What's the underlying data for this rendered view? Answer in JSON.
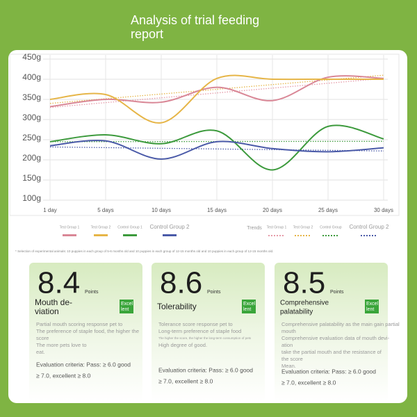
{
  "title": [
    "Analysis of trial feeding",
    "report"
  ],
  "chart_data": {
    "type": "line",
    "categories": [
      "1 day",
      "5 days",
      "10 days",
      "15 days",
      "20 days",
      "25 days",
      "30 days"
    ],
    "ylim": [
      100,
      450
    ],
    "yticks": [
      {
        "value": 100,
        "label": "100g"
      },
      {
        "value": 150,
        "label": "150g"
      },
      {
        "value": 200,
        "label": "200g"
      },
      {
        "value": 250,
        "label": "250g"
      },
      {
        "value": 300,
        "label": "300g"
      },
      {
        "value": 350,
        "label": "350g"
      },
      {
        "value": 400,
        "label": "400g"
      },
      {
        "value": 450,
        "label": "450g"
      }
    ],
    "grid": true,
    "series": [
      {
        "name": "Test Group 1",
        "color": "#d98796",
        "values": [
          332,
          350,
          343,
          380,
          347,
          405,
          402
        ]
      },
      {
        "name": "Test Group 2",
        "color": "#e6b547",
        "values": [
          350,
          362,
          292,
          402,
          400,
          400,
          400
        ]
      },
      {
        "name": "Control Group 1",
        "color": "#3c9a3c",
        "values": [
          245,
          262,
          240,
          272,
          175,
          283,
          252
        ]
      },
      {
        "name": "Control Group 2",
        "color": "#4a5aa8",
        "values": [
          235,
          247,
          202,
          245,
          228,
          220,
          230
        ]
      }
    ],
    "trends_label": "Trends",
    "trends": [
      {
        "name": "Test Group 1",
        "color": "#e59aa8",
        "values": [
          330,
          402
        ]
      },
      {
        "name": "Test Group 2",
        "color": "#e6b547",
        "values": [
          340,
          410
        ]
      },
      {
        "name": "Control Group",
        "color": "#3c9a3c",
        "values": [
          245,
          246
        ]
      },
      {
        "name": "Control Group 2",
        "color": "#4a5aa8",
        "values": [
          232,
          222
        ]
      }
    ]
  },
  "footnote": "* Selection of experimental animals: 10 puppies in each group of 5-6 months old and 10 puppies in each group of 12-15 months old and 10 puppies in each group of 12-15 months old.",
  "cards": [
    {
      "score": "8.4",
      "unit": "Points",
      "name": [
        "Mouth de-",
        "viation"
      ],
      "badge": [
        "Excel",
        "lent"
      ],
      "desc": [
        "Partial mouth scoring response pet to",
        "The preference of staple food, the higher the",
        "score",
        "The more pets love to",
        "eat."
      ],
      "criteria": [
        "Evaluation criteria: Pass: ≥ 6.0 good",
        "≥ 7.0, excellent ≥ 8.0"
      ]
    },
    {
      "score": "8.6",
      "unit": "Points",
      "name": [
        "Tolerability"
      ],
      "badge": [
        "Excel",
        "lent"
      ],
      "desc": [
        "Tolerance score response pet to",
        "Long-term preference of staple food",
        "The higher the score, the higher the long-term consumption of pets",
        "High degree of good."
      ],
      "criteria": [
        "Evaluation criteria: Pass: ≥ 6.0 good",
        "≥ 7.0, excellent ≥ 8.0"
      ]
    },
    {
      "score": "8.5",
      "unit": "Points",
      "name": [
        "Comprehensive",
        "palatability"
      ],
      "badge": [
        "Excel",
        "lent"
      ],
      "desc": [
        "Comprehensive palatability as the main gain partial",
        "mouth",
        "Comprehensive evaluation data of mouth devi-",
        "ation",
        "take the partial mouth and the resistance of",
        "the score",
        "Mean."
      ],
      "criteria": [
        "Evaluation criteria: Pass: ≥ 6.0 good",
        "≥ 7.0, excellent ≥ 8.0"
      ]
    }
  ]
}
